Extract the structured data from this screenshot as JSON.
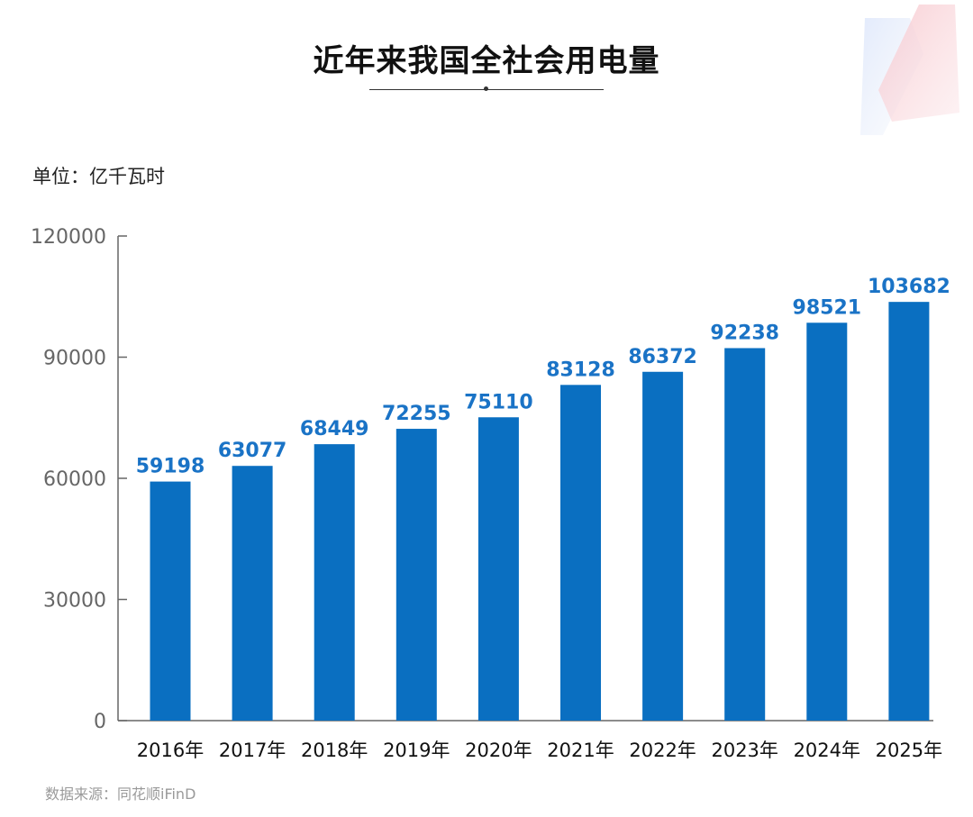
{
  "chart_data": {
    "type": "bar",
    "title": "近年来我国全社会用电量",
    "unit_label": "单位：亿千瓦时",
    "source": "数据来源：同花顺iFinD",
    "categories": [
      "2016年",
      "2017年",
      "2018年",
      "2019年",
      "2020年",
      "2021年",
      "2022年",
      "2023年",
      "2024年",
      "2025年"
    ],
    "values": [
      59198,
      63077,
      68449,
      72255,
      75110,
      83128,
      86372,
      92238,
      98521,
      103682
    ],
    "y_ticks": [
      0,
      30000,
      60000,
      90000,
      120000
    ],
    "ylim": [
      0,
      120000
    ],
    "grid": false,
    "bar_color": "#0a6fc1",
    "label_color": "#1a73c6"
  }
}
